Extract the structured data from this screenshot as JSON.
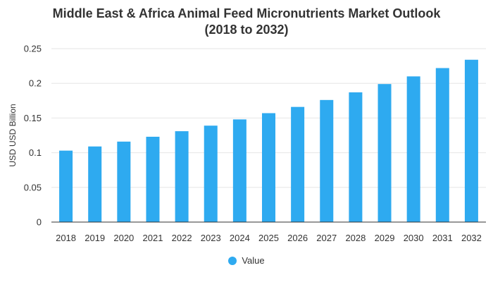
{
  "chart_data": {
    "type": "bar",
    "title_line1": "Middle East & Africa Animal Feed Micronutrients Market Outlook",
    "title_line2": "(2018 to 2032)",
    "xlabel": "",
    "ylabel": "USD USD Billion",
    "ylim": [
      0,
      0.25
    ],
    "yticks": [
      0,
      0.05,
      0.1,
      0.15,
      0.2,
      0.25
    ],
    "ytick_labels": [
      "0",
      "0.05",
      "0.1",
      "0.15",
      "0.2",
      "0.25"
    ],
    "grid": true,
    "legend_position": "bottom-center",
    "categories": [
      "2018",
      "2019",
      "2020",
      "2021",
      "2022",
      "2023",
      "2024",
      "2025",
      "2026",
      "2027",
      "2028",
      "2029",
      "2030",
      "2031",
      "2032"
    ],
    "series": [
      {
        "name": "Value",
        "color": "#2eaaf0",
        "values": [
          0.103,
          0.109,
          0.116,
          0.123,
          0.131,
          0.139,
          0.148,
          0.157,
          0.166,
          0.176,
          0.187,
          0.199,
          0.21,
          0.222,
          0.234
        ]
      }
    ]
  },
  "colors": {
    "bar": "#2eaaf0",
    "grid": "#e6e6e6",
    "text": "#333333",
    "axis": "#333333"
  }
}
